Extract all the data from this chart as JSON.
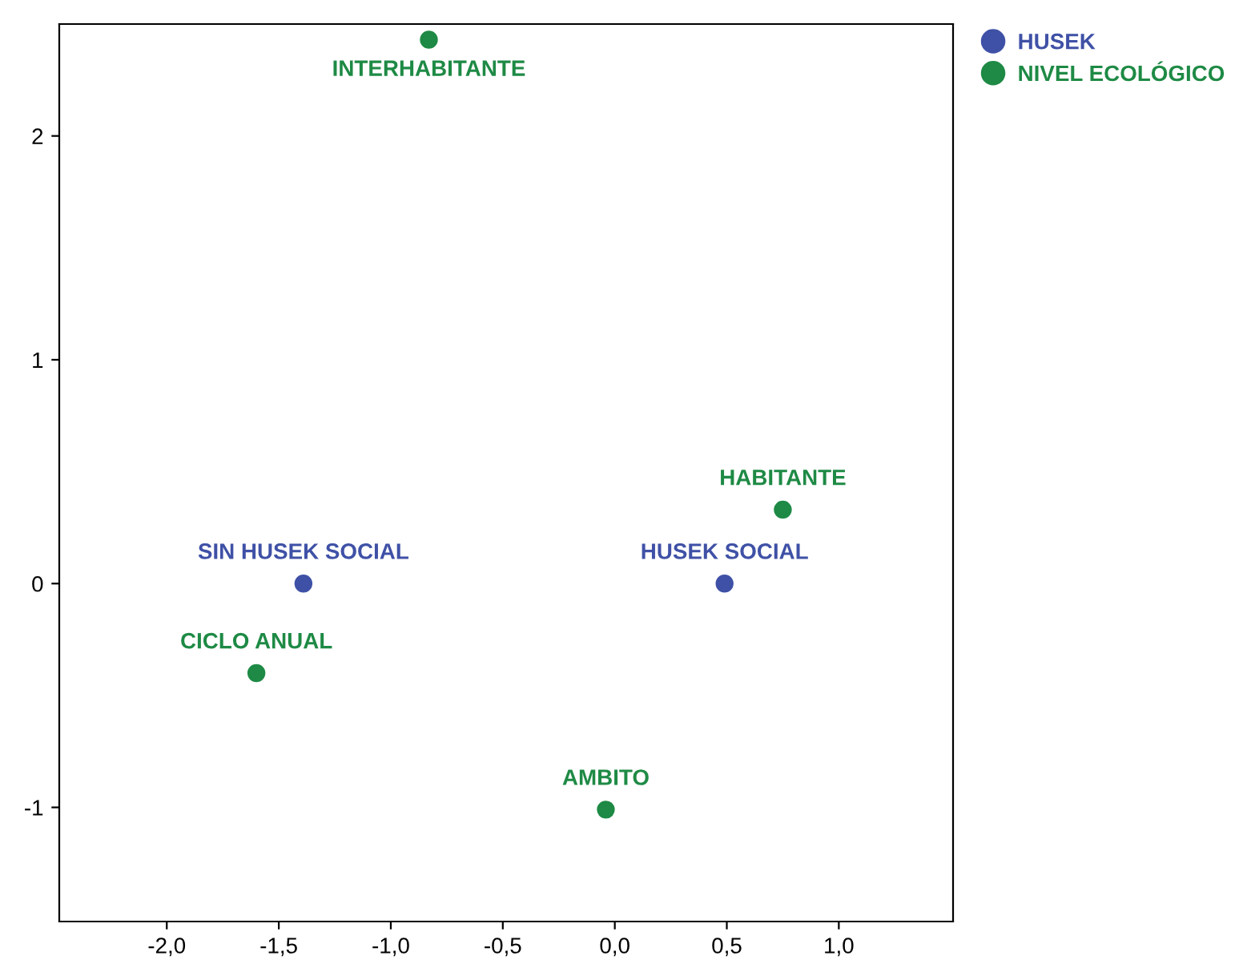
{
  "chart_data": {
    "type": "scatter",
    "series": [
      {
        "name": "HUSEK",
        "color": "#3f51a6",
        "x": [
          -1.39,
          0.49
        ],
        "values": [
          0.0,
          0.0
        ]
      },
      {
        "name": "NIVEL ECOLÓGICO",
        "color": "#1e8a45",
        "x": [
          -0.83,
          0.75,
          -1.6,
          -0.04
        ],
        "values": [
          2.43,
          0.33,
          -0.4,
          -1.01
        ]
      }
    ],
    "annotations": [
      {
        "text": "SIN HUSEK SOCIAL",
        "x": -1.39,
        "y": 0.0
      },
      {
        "text": "HUSEK SOCIAL",
        "x": 0.49,
        "y": 0.0
      },
      {
        "text": "INTERHABITANTE",
        "x": -0.83,
        "y": 2.43
      },
      {
        "text": "HABITANTE",
        "x": 0.75,
        "y": 0.33
      },
      {
        "text": "CICLO ANUAL",
        "x": -1.6,
        "y": -0.4
      },
      {
        "text": "AMBITO",
        "x": -0.04,
        "y": -1.01
      }
    ],
    "xlim": [
      -2.48,
      1.51
    ],
    "ylim": [
      -1.51,
      2.5
    ],
    "xticks": [
      {
        "value": -2,
        "label": "-2,0"
      },
      {
        "value": -1.5,
        "label": "-1,5"
      },
      {
        "value": -1,
        "label": "-1,0"
      },
      {
        "value": -0.5,
        "label": "-0,5"
      },
      {
        "value": 0,
        "label": "0,0"
      },
      {
        "value": 0.5,
        "label": "0,5"
      },
      {
        "value": 1,
        "label": "1,0"
      }
    ],
    "yticks": [
      -1,
      0,
      1,
      2
    ],
    "marker": "circle",
    "grid": false,
    "legend": "top right"
  }
}
